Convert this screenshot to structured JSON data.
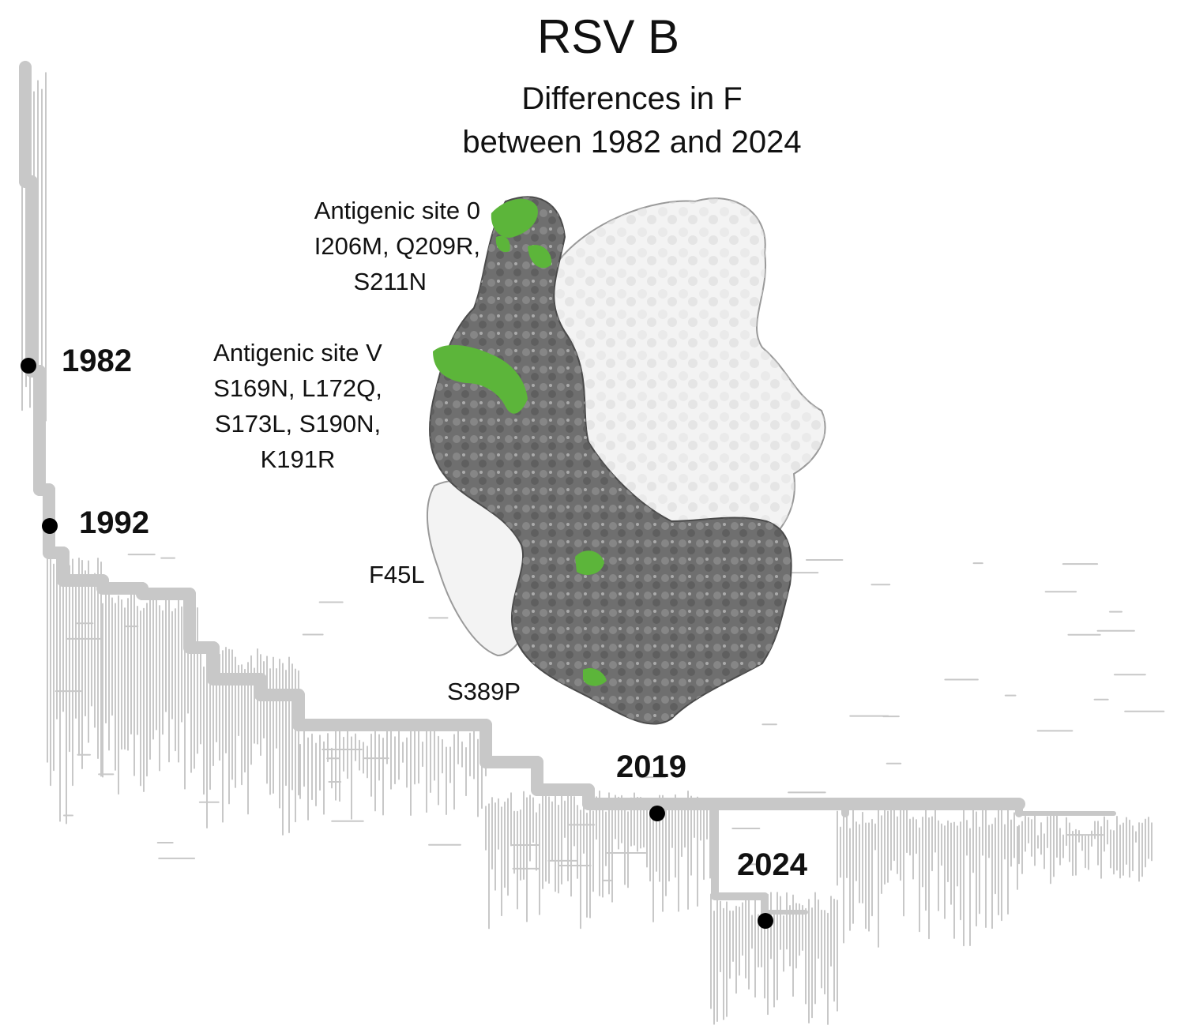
{
  "figure": {
    "title": "RSV B",
    "subtitle_line1": "Differences in F",
    "subtitle_line2": "between 1982 and 2024"
  },
  "antigenic_sites": [
    {
      "name": "Antigenic site 0",
      "mutations": [
        "I206M, Q209R,",
        "S211N"
      ]
    },
    {
      "name": "Antigenic site V",
      "mutations": [
        "S169N, L172Q,",
        "S173L, S190N,",
        "K191R"
      ]
    }
  ],
  "other_mutations": [
    "F45L",
    "S389P"
  ],
  "timepoints": [
    "1982",
    "1992",
    "2019",
    "2024"
  ],
  "colors": {
    "tree": "#c8c8c8",
    "protein_dark": "#6f6f6f",
    "protein_light": "#f3f3f3",
    "mutation_highlight": "#5cb53a",
    "dot": "#000000"
  }
}
